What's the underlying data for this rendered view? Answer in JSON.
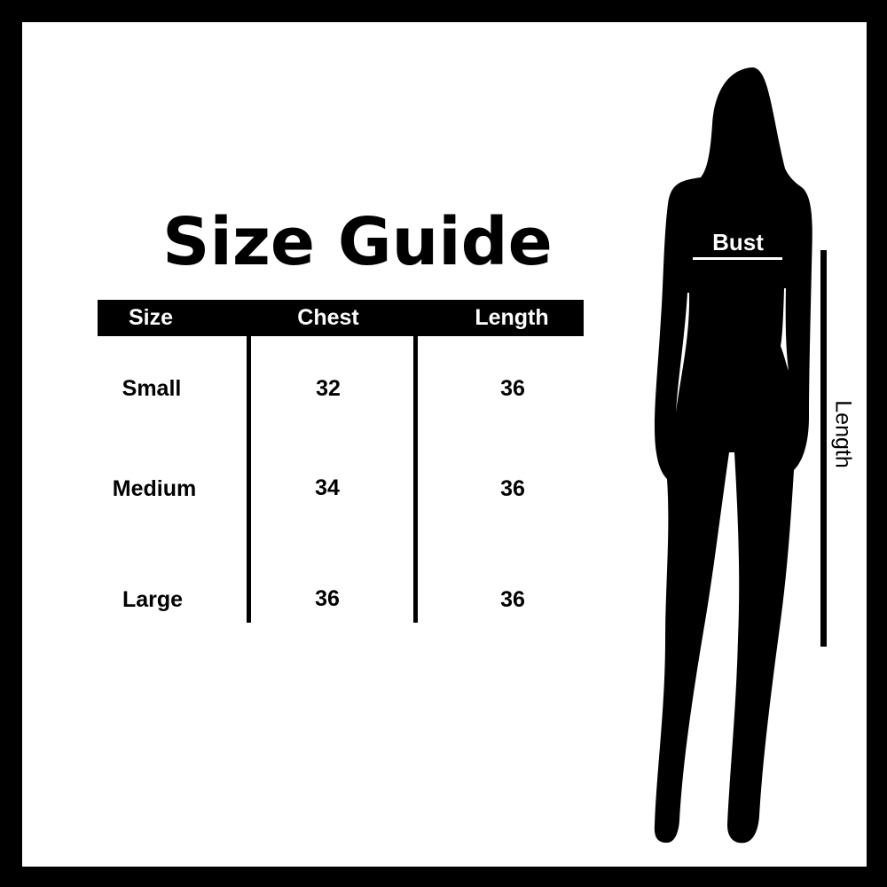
{
  "title": "Size Guide",
  "table": {
    "headers": [
      "Size",
      "Chest",
      "Length"
    ],
    "rows": [
      [
        "Small",
        "32",
        "36"
      ],
      [
        "Medium",
        "34",
        "36"
      ],
      [
        "Large",
        "36",
        "36"
      ]
    ]
  },
  "figure": {
    "bust_label": "Bust",
    "length_label": "Length"
  },
  "colors": {
    "frame": "#000000",
    "background": "#ffffff",
    "header_bg": "#000000",
    "header_text": "#ffffff"
  }
}
